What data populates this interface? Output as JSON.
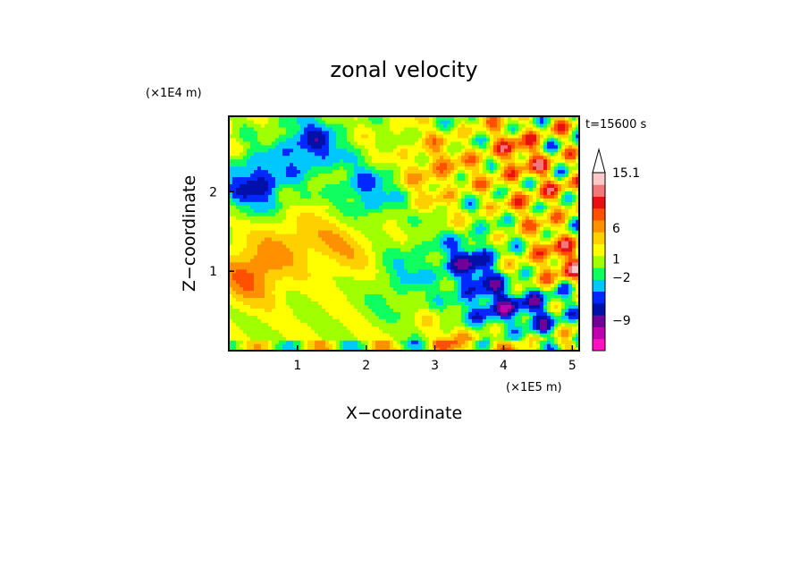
{
  "chart_data": {
    "type": "heatmap",
    "title": "zonal velocity",
    "xlabel": "X−coordinate",
    "ylabel": "Z−coordinate",
    "x_unit": "(×1E5 m)",
    "y_unit": "(×1E4 m)",
    "time_label": "t=15600 s",
    "xlim": [
      0,
      5.1
    ],
    "ylim": [
      0,
      2.95
    ],
    "xticks": [
      "1",
      "2",
      "3",
      "4",
      "5"
    ],
    "yticks": [
      "1",
      "2"
    ],
    "xtick_values": [
      1,
      2,
      3,
      4,
      5
    ],
    "ytick_values": [
      1,
      2
    ],
    "colorbar": {
      "colors": [
        "#ff10c0",
        "#c000b0",
        "#700098",
        "#0010a8",
        "#0028ff",
        "#00c8ff",
        "#10ff60",
        "#a0ff00",
        "#ffff00",
        "#ffd000",
        "#ff9000",
        "#ff5000",
        "#e81010",
        "#f07878",
        "#ffc8c8"
      ],
      "labels": [
        "15.1",
        "6",
        "1",
        "−2",
        "−9"
      ],
      "label_values": [
        15.1,
        6,
        1,
        -2,
        -9
      ],
      "extend": "max"
    },
    "field": {
      "description_units": "zonal velocity, m/s",
      "blobs": [
        {
          "x": 0.3,
          "z": 0.95,
          "v": 6
        },
        {
          "x": 0.8,
          "z": 1.35,
          "v": 3
        },
        {
          "x": 1.4,
          "z": 1.45,
          "v": 2
        },
        {
          "x": 1.8,
          "z": 1.25,
          "v": 2.5
        },
        {
          "x": 2.4,
          "z": 0.7,
          "v": -2
        },
        {
          "x": 2.6,
          "z": 1.1,
          "v": -3
        },
        {
          "x": 3.5,
          "z": 1.1,
          "v": -8
        },
        {
          "x": 3.8,
          "z": 0.5,
          "v": -9
        },
        {
          "x": 4.6,
          "z": 0.6,
          "v": -7
        },
        {
          "x": 4.8,
          "z": 1.05,
          "v": 7
        },
        {
          "x": 3.6,
          "z": 0.15,
          "v": 5
        },
        {
          "x": 0.4,
          "z": 2.1,
          "v": -9
        },
        {
          "x": 1.2,
          "z": 2.6,
          "v": -8
        },
        {
          "x": 2.0,
          "z": 2.0,
          "v": -6
        },
        {
          "x": 3.0,
          "z": 2.3,
          "v": 4
        },
        {
          "x": 4.2,
          "z": 2.5,
          "v": 5
        },
        {
          "x": 4.6,
          "z": 1.9,
          "v": 3
        }
      ]
    }
  }
}
